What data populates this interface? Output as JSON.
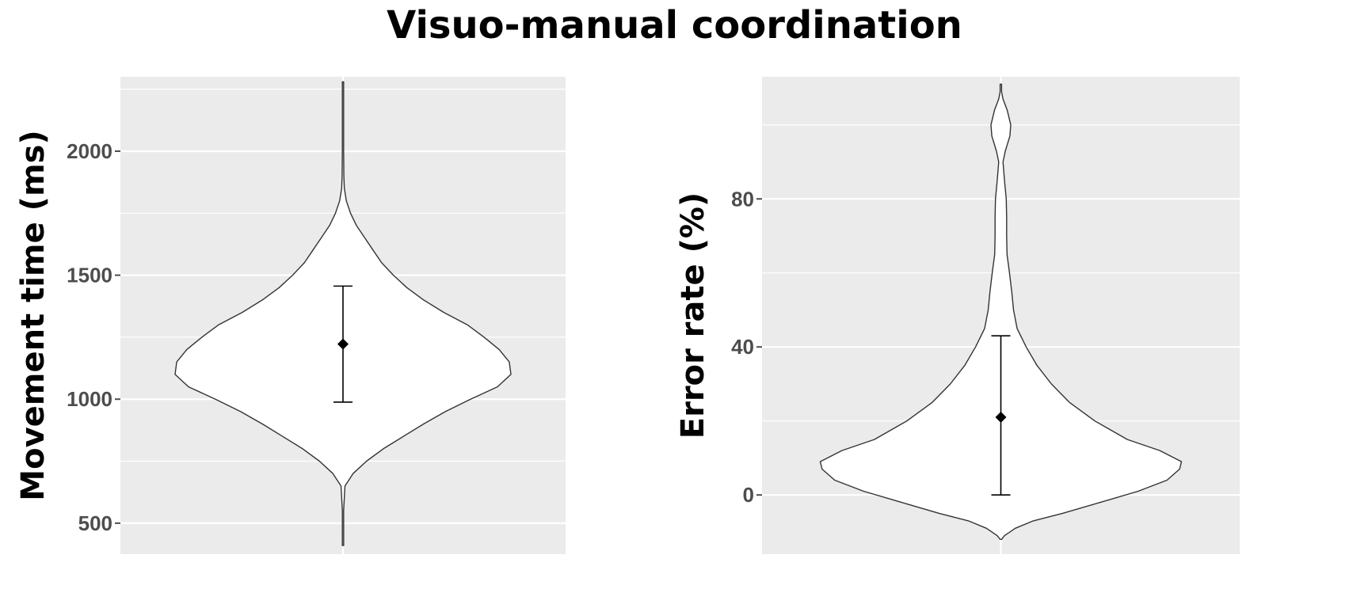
{
  "title": "Visuo-manual coordination",
  "chart_data": [
    {
      "type": "violin",
      "ylabel": "Movement time (ms)",
      "xlabel": "",
      "ylim": [
        375,
        2300
      ],
      "yticks": [
        500,
        1000,
        1500,
        2000
      ],
      "grid": true,
      "distribution": {
        "min": 410,
        "max": 2280,
        "density_profile": [
          [
            410,
            0.003
          ],
          [
            550,
            0.004
          ],
          [
            650,
            0.012
          ],
          [
            700,
            0.06
          ],
          [
            750,
            0.14
          ],
          [
            800,
            0.24
          ],
          [
            850,
            0.36
          ],
          [
            900,
            0.48
          ],
          [
            950,
            0.61
          ],
          [
            1000,
            0.76
          ],
          [
            1050,
            0.92
          ],
          [
            1100,
            1.0
          ],
          [
            1150,
            0.99
          ],
          [
            1200,
            0.93
          ],
          [
            1250,
            0.84
          ],
          [
            1300,
            0.74
          ],
          [
            1350,
            0.6
          ],
          [
            1400,
            0.48
          ],
          [
            1450,
            0.38
          ],
          [
            1500,
            0.3
          ],
          [
            1550,
            0.23
          ],
          [
            1600,
            0.18
          ],
          [
            1650,
            0.13
          ],
          [
            1700,
            0.08
          ],
          [
            1750,
            0.045
          ],
          [
            1800,
            0.02
          ],
          [
            1850,
            0.008
          ],
          [
            1900,
            0.005
          ],
          [
            2000,
            0.004
          ],
          [
            2100,
            0.003
          ],
          [
            2280,
            0.002
          ]
        ]
      },
      "mean": 1222,
      "error_bar": [
        988,
        1456
      ]
    },
    {
      "type": "violin",
      "ylabel": "Error rate (%)",
      "xlabel": "",
      "ylim": [
        -16,
        113
      ],
      "yticks": [
        0,
        40,
        80
      ],
      "grid": true,
      "distribution": {
        "min": -12,
        "max": 111,
        "density_profile": [
          [
            -12,
            0.0
          ],
          [
            -11,
            0.02
          ],
          [
            -9,
            0.08
          ],
          [
            -7,
            0.18
          ],
          [
            -5,
            0.34
          ],
          [
            -2,
            0.55
          ],
          [
            1,
            0.76
          ],
          [
            4,
            0.92
          ],
          [
            7,
            0.99
          ],
          [
            9,
            1.0
          ],
          [
            12,
            0.88
          ],
          [
            15,
            0.7
          ],
          [
            20,
            0.52
          ],
          [
            25,
            0.38
          ],
          [
            30,
            0.28
          ],
          [
            35,
            0.2
          ],
          [
            40,
            0.14
          ],
          [
            45,
            0.09
          ],
          [
            50,
            0.07
          ],
          [
            55,
            0.06
          ],
          [
            60,
            0.048
          ],
          [
            65,
            0.034
          ],
          [
            70,
            0.032
          ],
          [
            75,
            0.032
          ],
          [
            80,
            0.03
          ],
          [
            85,
            0.02
          ],
          [
            90,
            0.012
          ],
          [
            93,
            0.025
          ],
          [
            97,
            0.05
          ],
          [
            100,
            0.055
          ],
          [
            104,
            0.035
          ],
          [
            107,
            0.012
          ],
          [
            109,
            0.004
          ],
          [
            111,
            0.002
          ]
        ]
      },
      "mean": 21,
      "error_bar": [
        0,
        43
      ]
    }
  ]
}
